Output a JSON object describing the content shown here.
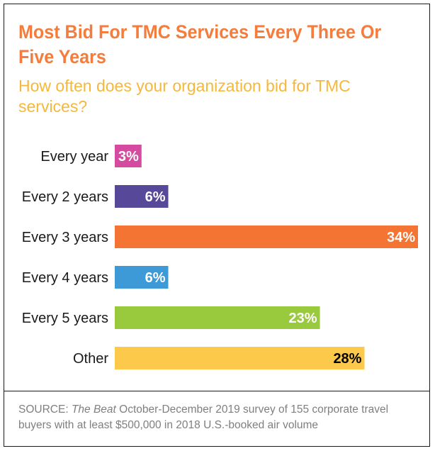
{
  "title": "Most Bid For TMC Services Every Three Or Five Years",
  "subtitle": "How often does your organization bid for TMC services?",
  "source": {
    "prefix": "SOURCE: ",
    "publication": "The Beat",
    "text": " October-December 2019 survey of 155  corporate travel buyers with at least $500,000 in 2018 U.S.-booked air volume"
  },
  "colors": {
    "title": "#f47c3c",
    "subtitle": "#f5b83a",
    "source": "#7f7f7f"
  },
  "chart_data": {
    "type": "bar",
    "orientation": "horizontal",
    "title": "",
    "xlabel": "",
    "ylabel": "",
    "xlim": [
      0,
      34
    ],
    "grid": false,
    "categories": [
      "Every year",
      "Every 2 years",
      "Every 3 years",
      "Every 4 years",
      "Every 5 years",
      "Other"
    ],
    "values": [
      3,
      6,
      34,
      6,
      23,
      28
    ],
    "data_labels": [
      "3%",
      "6%",
      "34%",
      "6%",
      "23%",
      "28%"
    ],
    "colors": [
      "#d44ba0",
      "#58489a",
      "#f47533",
      "#3d9ad7",
      "#99c93c",
      "#fcc94a"
    ],
    "label_colors": [
      "#ffffff",
      "#ffffff",
      "#ffffff",
      "#ffffff",
      "#ffffff",
      "#000000"
    ]
  }
}
